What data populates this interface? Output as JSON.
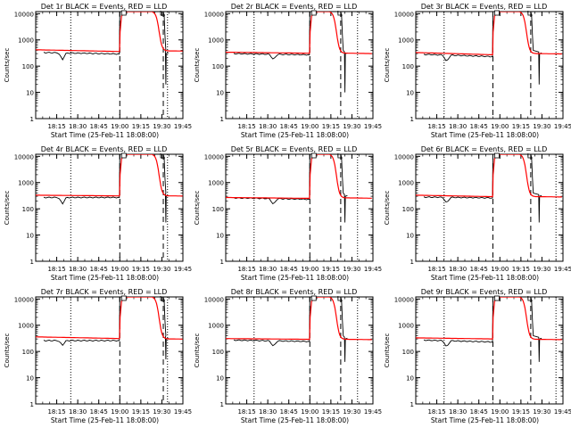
{
  "chart_data": {
    "type": "line",
    "grid": "3x3",
    "shared": {
      "ylabel": "Counts/sec",
      "xlabel": "Start Time (25-Feb-11 18:08:00)",
      "y_scale": "log",
      "ylim": [
        1,
        12000
      ],
      "y_ticks": [
        1,
        10,
        100,
        1000,
        10000
      ],
      "series": [
        {
          "name": "Events",
          "color": "#000000"
        },
        {
          "name": "LLD",
          "color": "#ff0000"
        }
      ]
    },
    "panels": [
      {
        "title": "Det 1r BLACK = Events, RED = LLD",
        "x_ticks": [
          "18:15",
          "18:30",
          "18:45",
          "19:00",
          "19:15",
          "19:30",
          "19:45"
        ],
        "xlim": [
          18.083,
          19.833
        ],
        "dotted_x": [
          18.5,
          19.65
        ],
        "dashed_x": [
          19.083,
          19.6
        ],
        "events": {
          "base1": 330,
          "dip_at": 18.4,
          "dip_min": 170,
          "base2": 290,
          "spike_at": 19.63,
          "spike_min": 20
        },
        "lld": {
          "start": 420,
          "mid": 360,
          "tail": 380
        }
      },
      {
        "title": "Det 2r BLACK = Events, RED = LLD",
        "x_ticks": [
          "18:15",
          "18:30",
          "18:45",
          "19:00",
          "19:15",
          "19:30",
          "19:45"
        ],
        "xlim": [
          18.083,
          19.833
        ],
        "dotted_x": [
          18.42,
          19.65
        ],
        "dashed_x": [
          19.083,
          19.45
        ],
        "events": {
          "base1": 300,
          "dip_at": 18.65,
          "dip_min": 170,
          "base2": 270,
          "spike_at": 19.5,
          "spike_min": 10
        },
        "lld": {
          "start": 340,
          "mid": 310,
          "tail": 310
        }
      },
      {
        "title": "Det 3r BLACK = Events, RED = LLD",
        "x_ticks": [
          "18:15",
          "18:30",
          "18:45",
          "19:00",
          "19:15",
          "19:30",
          "19:45"
        ],
        "xlim": [
          18.083,
          19.833
        ],
        "dotted_x": [
          18.42,
          19.75
        ],
        "dashed_x": [
          19.0,
          19.45
        ],
        "events": {
          "base1": 280,
          "dip_at": 18.45,
          "dip_min": 140,
          "base2": 230,
          "spike_at": 19.55,
          "spike_min": 20
        },
        "lld": {
          "start": 330,
          "mid": 270,
          "tail": 300
        }
      },
      {
        "title": "Det 4r BLACK = Events, RED = LLD",
        "x_ticks": [
          "18:15",
          "18:30",
          "18:45",
          "19:00",
          "19:15",
          "19:30",
          "19:45"
        ],
        "xlim": [
          18.083,
          19.833
        ],
        "dotted_x": [
          18.5,
          19.65
        ],
        "dashed_x": [
          19.083,
          19.6
        ],
        "events": {
          "base1": 270,
          "dip_at": 18.4,
          "dip_min": 150,
          "base2": 270,
          "spike_at": 19.63,
          "spike_min": 30
        },
        "lld": {
          "start": 330,
          "mid": 310,
          "tail": 310
        }
      },
      {
        "title": "Det 5r BLACK = Events, RED = LLD",
        "x_ticks": [
          "18:15",
          "18:30",
          "18:45",
          "19:00",
          "19:15",
          "19:30",
          "19:45"
        ],
        "xlim": [
          18.083,
          19.833
        ],
        "dotted_x": [
          18.42,
          19.65
        ],
        "dashed_x": [
          19.083,
          19.45
        ],
        "events": {
          "base1": 260,
          "dip_at": 18.65,
          "dip_min": 140,
          "base2": 230,
          "spike_at": 19.5,
          "spike_min": 30
        },
        "lld": {
          "start": 270,
          "mid": 250,
          "tail": 260
        }
      },
      {
        "title": "Det 6r BLACK = Events, RED = LLD",
        "x_ticks": [
          "18:15",
          "18:30",
          "18:45",
          "19:00",
          "19:15",
          "19:30",
          "19:45"
        ],
        "xlim": [
          18.083,
          19.833
        ],
        "dotted_x": [
          18.42,
          19.75
        ],
        "dashed_x": [
          19.0,
          19.45
        ],
        "events": {
          "base1": 280,
          "dip_at": 18.45,
          "dip_min": 160,
          "base2": 260,
          "spike_at": 19.55,
          "spike_min": 30
        },
        "lld": {
          "start": 330,
          "mid": 290,
          "tail": 290
        }
      },
      {
        "title": "Det 7r BLACK = Events, RED = LLD",
        "x_ticks": [
          "18:15",
          "18:30",
          "18:45",
          "19:00",
          "19:15",
          "19:30",
          "19:45"
        ],
        "xlim": [
          18.083,
          19.833
        ],
        "dotted_x": [
          18.5,
          19.65
        ],
        "dashed_x": [
          19.083,
          19.6
        ],
        "events": {
          "base1": 260,
          "dip_at": 18.4,
          "dip_min": 170,
          "base2": 260,
          "spike_at": 19.63,
          "spike_min": 50
        },
        "lld": {
          "start": 360,
          "mid": 310,
          "tail": 300
        }
      },
      {
        "title": "Det 8r BLACK = Events, RED = LLD",
        "x_ticks": [
          "18:15",
          "18:30",
          "18:45",
          "19:00",
          "19:15",
          "19:30",
          "19:45"
        ],
        "xlim": [
          18.083,
          19.833
        ],
        "dotted_x": [
          18.42,
          19.65
        ],
        "dashed_x": [
          19.083,
          19.45
        ],
        "events": {
          "base1": 270,
          "dip_at": 18.65,
          "dip_min": 150,
          "base2": 240,
          "spike_at": 19.5,
          "spike_min": 40
        },
        "lld": {
          "start": 310,
          "mid": 290,
          "tail": 290
        }
      },
      {
        "title": "Det 9r BLACK = Events, RED = LLD",
        "x_ticks": [
          "18:15",
          "18:30",
          "18:45",
          "19:00",
          "19:15",
          "19:30",
          "19:45"
        ],
        "xlim": [
          18.083,
          19.833
        ],
        "dotted_x": [
          18.42,
          19.75
        ],
        "dashed_x": [
          19.0,
          19.45
        ],
        "events": {
          "base1": 270,
          "dip_at": 18.45,
          "dip_min": 140,
          "base2": 230,
          "spike_at": 19.55,
          "spike_min": 40
        },
        "lld": {
          "start": 330,
          "mid": 300,
          "tail": 290
        }
      }
    ]
  }
}
